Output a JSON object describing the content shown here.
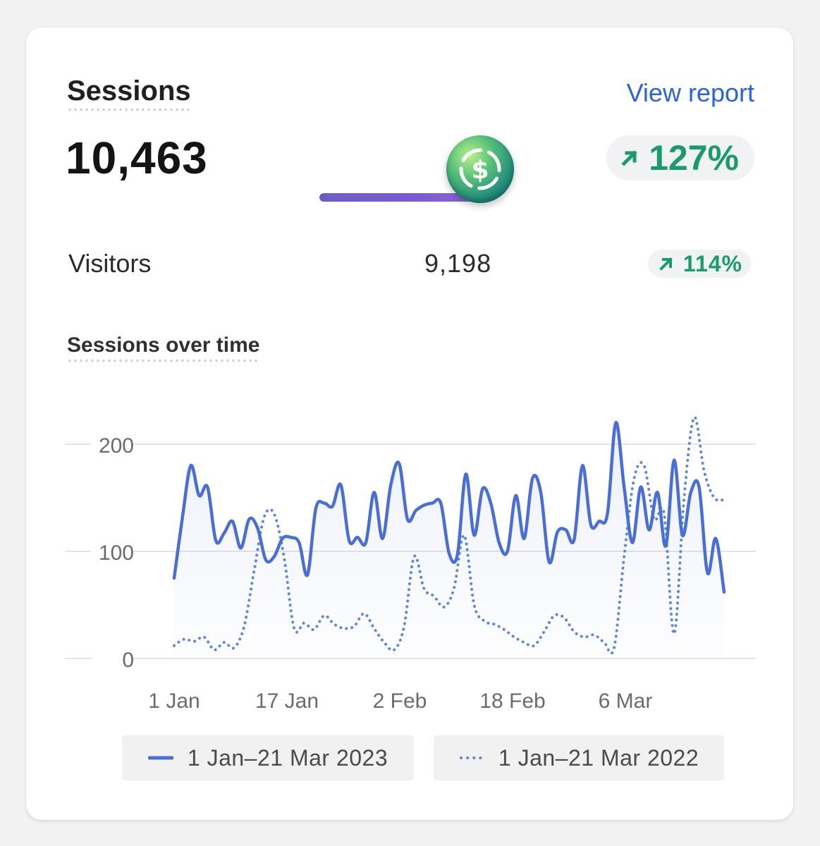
{
  "header": {
    "title": "Sessions",
    "view_report": "View report"
  },
  "sessions": {
    "value": "10,463",
    "change": "127%",
    "change_direction": "up",
    "slider_level": 0.9
  },
  "visitors": {
    "label": "Visitors",
    "value": "9,198",
    "change": "114%",
    "change_direction": "up"
  },
  "icons": {
    "coin": "dollar-coin-icon",
    "trend": "arrow-up-right-icon"
  },
  "colors": {
    "accent": "#2b63d9",
    "series_current": "#4a6fd4",
    "series_previous": "#5a87d8",
    "positive": "#1b9b6c",
    "slider": "#7a5bd0"
  },
  "chart_data": {
    "type": "line",
    "title": "Sessions over time",
    "xlabel": "",
    "ylabel": "",
    "ylim": [
      0,
      230
    ],
    "yticks": [
      0,
      100,
      200
    ],
    "x_tick_labels": [
      "1 Jan",
      "17 Jan",
      "2 Feb",
      "18 Feb",
      "6 Mar"
    ],
    "x_tick_days": [
      1,
      17,
      33,
      49,
      65
    ],
    "x_range_days": [
      1,
      79
    ],
    "grid": true,
    "legend_position": "bottom",
    "series": [
      {
        "name": "1 Jan–21 Mar 2023",
        "style": "solid",
        "values": [
          75,
          132,
          180,
          152,
          160,
          110,
          117,
          128,
          103,
          130,
          122,
          92,
          95,
          112,
          113,
          108,
          78,
          140,
          145,
          142,
          162,
          110,
          113,
          108,
          155,
          112,
          162,
          182,
          130,
          138,
          143,
          145,
          145,
          98,
          97,
          172,
          115,
          158,
          145,
          108,
          100,
          152,
          112,
          168,
          155,
          90,
          118,
          120,
          111,
          180,
          125,
          128,
          135,
          220,
          160,
          108,
          160,
          120,
          155,
          105,
          185,
          115,
          155,
          160,
          80,
          112,
          62
        ]
      },
      {
        "name": "1 Jan–21 Mar 2022",
        "style": "dotted",
        "values": [
          12,
          18,
          16,
          20,
          8,
          15,
          10,
          30,
          82,
          132,
          135,
          94,
          28,
          33,
          27,
          40,
          32,
          28,
          30,
          42,
          28,
          15,
          8,
          30,
          95,
          65,
          58,
          48,
          66,
          115,
          50,
          35,
          32,
          27,
          20,
          15,
          12,
          25,
          40,
          38,
          25,
          20,
          22,
          15,
          10,
          95,
          168,
          180,
          130,
          135,
          23,
          150,
          225,
          175,
          150,
          148
        ]
      }
    ]
  }
}
